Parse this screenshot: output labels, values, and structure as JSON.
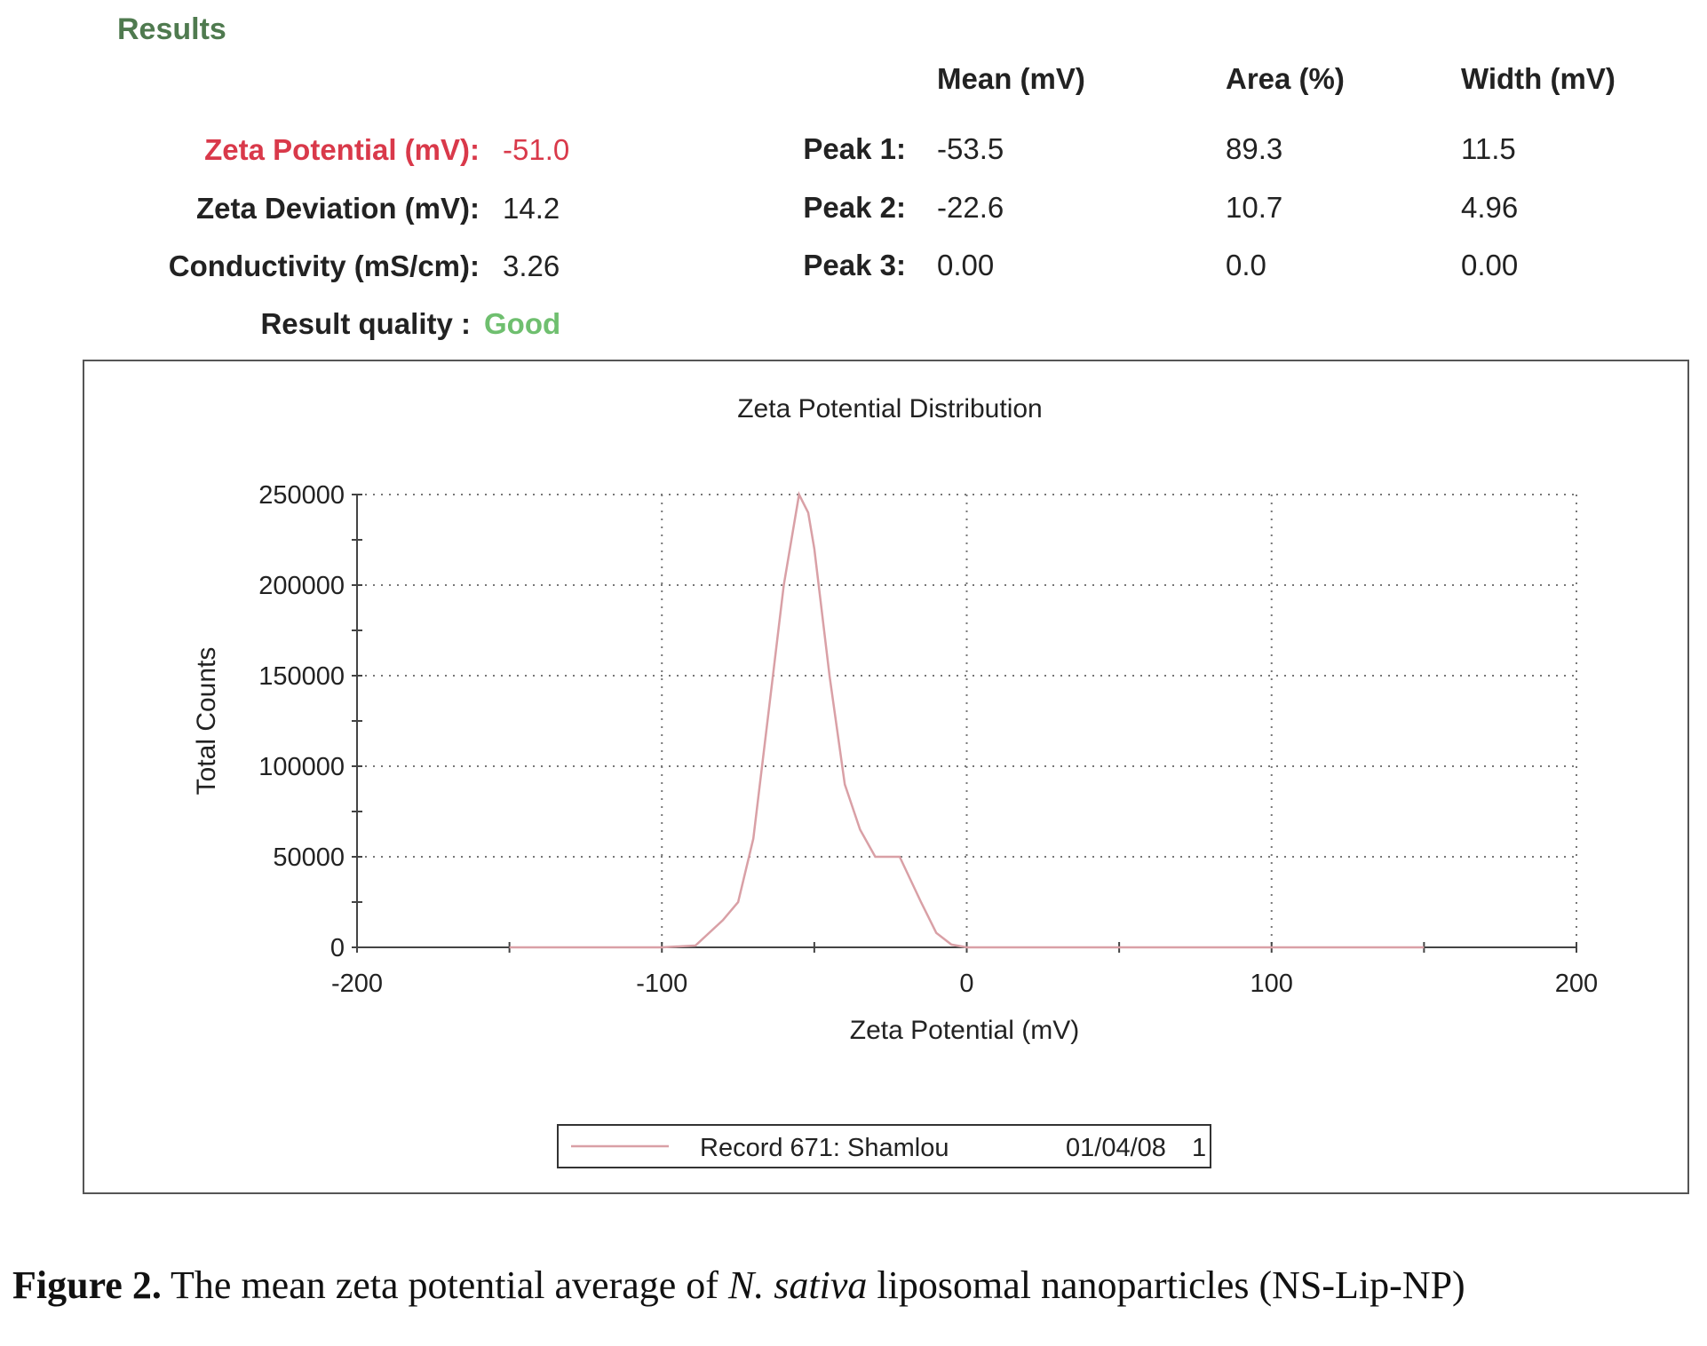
{
  "results": {
    "title": "Results",
    "zeta_potential_label": "Zeta Potential (mV):",
    "zeta_potential_value": "-51.0",
    "zeta_deviation_label": "Zeta Deviation (mV):",
    "zeta_deviation_value": "14.2",
    "conductivity_label": "Conductivity (mS/cm):",
    "conductivity_value": "3.26",
    "result_quality_label": "Result quality :",
    "result_quality_value": "Good"
  },
  "peaks": {
    "headers": [
      "Mean (mV)",
      "Area (%)",
      "Width (mV)"
    ],
    "rows": [
      {
        "label": "Peak 1:",
        "mean": "-53.5",
        "area": "89.3",
        "width": "11.5"
      },
      {
        "label": "Peak 2:",
        "mean": "-22.6",
        "area": "10.7",
        "width": "4.96"
      },
      {
        "label": "Peak 3:",
        "mean": "0.00",
        "area": "0.0",
        "width": "0.00"
      }
    ]
  },
  "colors": {
    "red": "#d9394a",
    "green": "#6fbf6f",
    "series_line": "#d9a0a6"
  },
  "chart_data": {
    "type": "line",
    "title": "Zeta Potential Distribution",
    "xlabel": "Zeta Potential (mV)",
    "ylabel": "Total Counts",
    "xlim": [
      -200,
      200
    ],
    "ylim": [
      0,
      250000
    ],
    "xticks": [
      "-200",
      "-100",
      "0",
      "100",
      "200"
    ],
    "yticks": [
      "0",
      "50000",
      "100000",
      "150000",
      "200000",
      "250000"
    ],
    "grid": true,
    "legend_position": "bottom-center",
    "series": [
      {
        "name": "Record 671: Shamlou",
        "date": "01/04/08",
        "index": "1",
        "x": [
          -150,
          -110,
          -100,
          -89,
          -80,
          -75,
          -70,
          -65,
          -60,
          -55,
          -52,
          -50,
          -45,
          -40,
          -35,
          -30,
          -25,
          -22,
          -15,
          -10,
          -5,
          0,
          50,
          100,
          150
        ],
        "y": [
          0,
          0,
          0,
          1000,
          15000,
          25000,
          60000,
          130000,
          200000,
          250000,
          240000,
          220000,
          150000,
          90000,
          65000,
          50000,
          50000,
          50000,
          25000,
          8000,
          1500,
          0,
          0,
          0,
          0
        ]
      }
    ]
  },
  "caption": {
    "label": "Figure 2.",
    "text_before": " The mean zeta potential average of ",
    "italic": "N. sativa",
    "text_after": " liposomal nanoparticles (NS-Lip-NP)"
  }
}
